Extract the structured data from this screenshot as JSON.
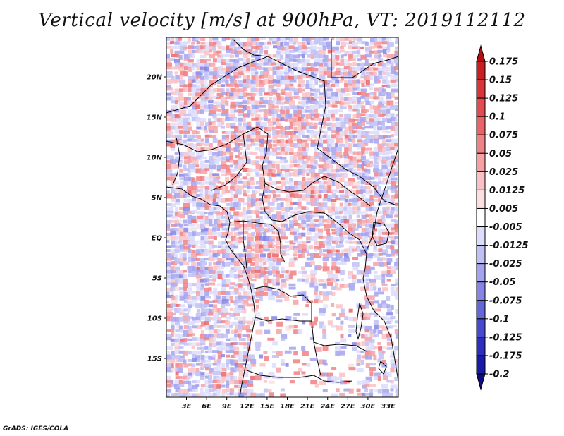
{
  "title": "Vertical velocity [m/s] at 900hPa, VT: 2019112112",
  "credit": "GrADS: IGES/COLA",
  "map": {
    "lat_ticks": [
      "20N",
      "15N",
      "10N",
      "5N",
      "EQ",
      "5S",
      "10S",
      "15S"
    ],
    "lon_ticks": [
      "3E",
      "6E",
      "9E",
      "12E",
      "15E",
      "18E",
      "21E",
      "24E",
      "27E",
      "30E",
      "33E"
    ]
  },
  "colorbar": {
    "labels": [
      "0.175",
      "0.15",
      "0.125",
      "0.1",
      "0.075",
      "0.05",
      "0.025",
      "0.0125",
      "0.005",
      "-0.005",
      "-0.0125",
      "-0.025",
      "-0.05",
      "-0.075",
      "-0.1",
      "-0.125",
      "-0.175",
      "-0.2"
    ],
    "colors": [
      "#b30f12",
      "#c81e24",
      "#d9343a",
      "#e34b50",
      "#ea6467",
      "#f08185",
      "#f5a1a4",
      "#f9c1c3",
      "#fcdfe0",
      "#ffffff",
      "#dcdcfb",
      "#c0c0f5",
      "#a3a3ef",
      "#8585e6",
      "#6666dc",
      "#4848d0",
      "#2d2dbf",
      "#1a1aa8",
      "#0c0c8a"
    ],
    "colors_order": "top-to-bottom"
  }
}
